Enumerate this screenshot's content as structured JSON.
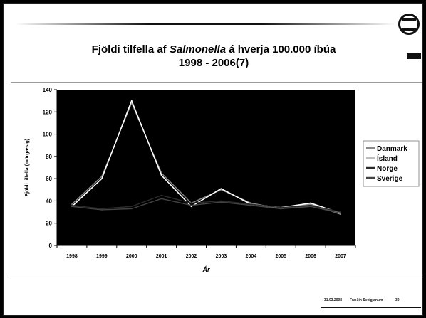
{
  "slide": {
    "title_line1_a": "Fjöldi tilfella af ",
    "title_line1_b": "Salmonella",
    "title_line1_c": " á hverja 100.000 íbúa",
    "title_line2": "1998 - 2006(7)",
    "footer_date": "31.03.2008",
    "footer_name": "Fræðin Sveigjanum",
    "page_number": "30",
    "logo_icon": "circular-logo-icon",
    "accent_color": "#111111"
  },
  "chart_data": {
    "type": "line",
    "title": "",
    "xlabel": "Ár",
    "ylabel": "Fjöldi tilfella (mörgæsig)",
    "ylim": [
      0,
      140
    ],
    "yticks": [
      0,
      20,
      40,
      60,
      80,
      100,
      120,
      140
    ],
    "categories": [
      "1998",
      "1999",
      "2000",
      "2001",
      "2002",
      "2003",
      "2004",
      "2005",
      "2006",
      "2007"
    ],
    "plot_background": "#000000",
    "grid": false,
    "legend_position": "right",
    "series": [
      {
        "name": "Danmark",
        "color": "#888888",
        "values": [
          37,
          62,
          128,
          65,
          38,
          50,
          38,
          33,
          37,
          28
        ]
      },
      {
        "name": "Ísland",
        "color": "#ffffff",
        "values": [
          35,
          60,
          130,
          63,
          35,
          51,
          37,
          34,
          38,
          29
        ]
      },
      {
        "name": "Norge",
        "color": "#2a2a2a",
        "values": [
          36,
          33,
          35,
          45,
          38,
          40,
          37,
          34,
          36,
          30
        ]
      },
      {
        "name": "Sverige",
        "color": "#444444",
        "values": [
          35,
          32,
          33,
          42,
          36,
          39,
          36,
          33,
          35,
          29
        ]
      }
    ]
  }
}
